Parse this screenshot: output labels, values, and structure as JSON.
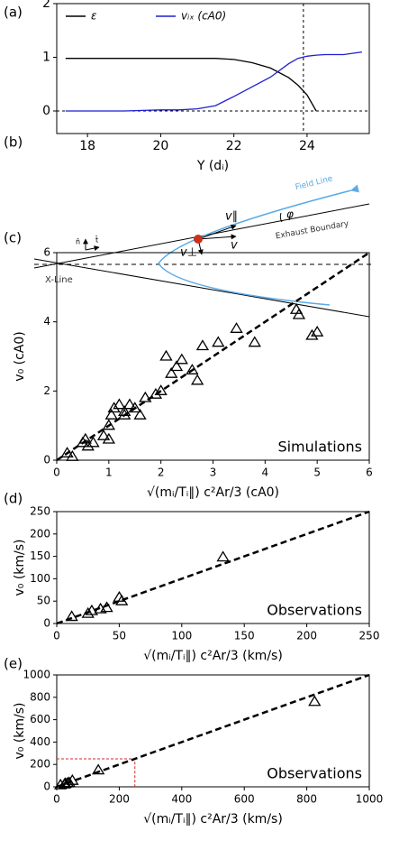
{
  "panels": [
    "(a)",
    "(b)",
    "(c)",
    "(d)",
    "(e)"
  ],
  "diagram": {
    "x_line": "X-Line",
    "field_line": "Field Line",
    "exhaust_boundary": "Exhaust Boundary",
    "phi": "φ",
    "v_par": "v∥",
    "v_perp": "v⊥",
    "v": "v",
    "n_hat": "n̂",
    "t_hat": "t̂"
  },
  "chart_data": [
    {
      "type": "line",
      "xlabel": "Y (dᵢ)",
      "legend": "upper left",
      "xlim": [
        17.16,
        25.7
      ],
      "xticks": [
        18,
        20,
        22,
        24
      ],
      "ylim": [
        -0.42,
        2
      ],
      "yticks": [
        0,
        1,
        2
      ],
      "x": [
        17.4,
        18,
        18.5,
        19,
        19.5,
        20,
        20.5,
        21,
        21.5,
        22,
        22.5,
        23,
        23.5,
        23.75,
        24,
        24.25,
        24.5,
        25,
        25.5
      ],
      "series": [
        {
          "name": "ε",
          "color": "#000000",
          "values": [
            0.98,
            0.98,
            0.98,
            0.98,
            0.98,
            0.98,
            0.98,
            0.98,
            0.98,
            0.96,
            0.9,
            0.8,
            0.62,
            0.48,
            0.3,
            0.0,
            null,
            null,
            null
          ]
        },
        {
          "name": "vᵢₓ (cA0)",
          "color": "#1f1fd0",
          "values": [
            0.0,
            0.0,
            0.0,
            0.0,
            0.01,
            0.02,
            0.02,
            0.04,
            0.1,
            0.27,
            0.45,
            0.63,
            0.88,
            0.98,
            1.02,
            1.04,
            1.05,
            1.05,
            1.1
          ]
        }
      ],
      "vlines": [
        23.9
      ],
      "hlines": [
        0
      ]
    },
    {
      "type": "scatter",
      "xlabel": "√(mᵢ/Tᵢ∥) c²Ar/3 (cA0)",
      "ylabel": "v₀ (cA0)",
      "annotation": "Simulations",
      "xlim": [
        0,
        6
      ],
      "xticks": [
        0,
        1,
        2,
        3,
        4,
        5,
        6
      ],
      "ylim": [
        0,
        6
      ],
      "yticks": [
        0,
        2,
        4,
        6
      ],
      "x": [
        0.2,
        0.3,
        0.5,
        0.55,
        0.6,
        0.7,
        0.9,
        1.0,
        1.0,
        1.05,
        1.1,
        1.2,
        1.3,
        1.3,
        1.4,
        1.5,
        1.6,
        1.7,
        1.9,
        2.0,
        2.1,
        2.2,
        2.3,
        2.4,
        2.6,
        2.7,
        2.8,
        3.1,
        3.45,
        3.8,
        4.6,
        4.65,
        4.9,
        5.0
      ],
      "values": [
        0.2,
        0.1,
        0.5,
        0.6,
        0.4,
        0.5,
        0.7,
        1.0,
        0.6,
        1.3,
        1.5,
        1.6,
        1.4,
        1.3,
        1.6,
        1.5,
        1.3,
        1.8,
        1.9,
        2.0,
        3.0,
        2.5,
        2.7,
        2.9,
        2.6,
        2.3,
        3.3,
        3.4,
        3.8,
        3.4,
        4.35,
        4.2,
        3.6,
        3.7
      ],
      "fit": {
        "x": [
          0,
          6
        ],
        "y": [
          0,
          6
        ]
      }
    },
    {
      "type": "scatter",
      "xlabel": "√(mᵢ/Tᵢ∥) c²Ar/3 (km/s)",
      "ylabel": "v₀ (km/s)",
      "annotation": "Observations",
      "xlim": [
        0,
        250
      ],
      "xticks": [
        0,
        50,
        100,
        150,
        200,
        250
      ],
      "ylim": [
        0,
        250
      ],
      "yticks": [
        0,
        50,
        100,
        150,
        200,
        250
      ],
      "x": [
        12,
        25,
        28,
        35,
        40,
        50,
        52,
        133
      ],
      "values": [
        15,
        22,
        28,
        32,
        35,
        58,
        50,
        148
      ],
      "fit": {
        "x": [
          0,
          250
        ],
        "y": [
          0,
          250
        ]
      }
    },
    {
      "type": "scatter",
      "xlabel": "√(mᵢ/Tᵢ∥) c²Ar/3 (km/s)",
      "ylabel": "v₀ (km/s)",
      "annotation": "Observations",
      "xlim": [
        0,
        1000
      ],
      "xticks": [
        0,
        200,
        400,
        600,
        800,
        1000
      ],
      "ylim": [
        0,
        1000
      ],
      "yticks": [
        0,
        200,
        400,
        600,
        800,
        1000
      ],
      "x": [
        12,
        25,
        28,
        35,
        40,
        50,
        133,
        825
      ],
      "values": [
        15,
        22,
        28,
        32,
        35,
        55,
        148,
        760
      ],
      "fit": {
        "x": [
          0,
          1000
        ],
        "y": [
          0,
          1000
        ]
      },
      "box": [
        250,
        250
      ],
      "box_color": "#d62728"
    }
  ]
}
